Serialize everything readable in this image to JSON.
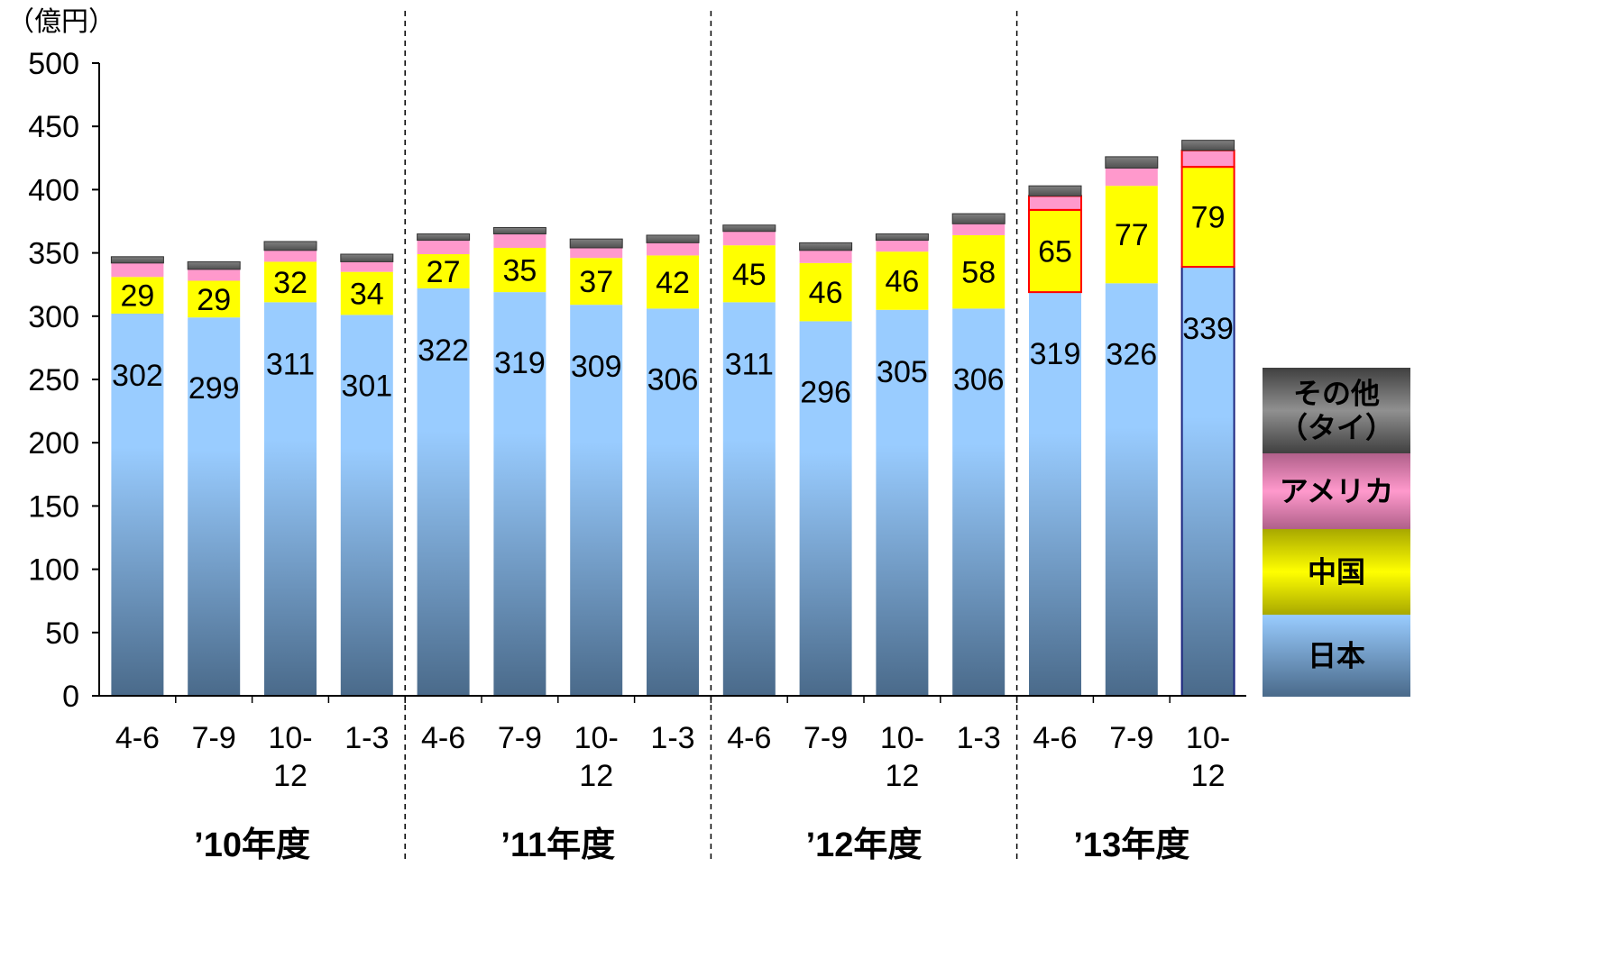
{
  "chart_data": {
    "type": "bar",
    "stacked": true,
    "unit": "（億円）",
    "ylim": [
      0,
      500
    ],
    "yticks": [
      0,
      50,
      100,
      150,
      200,
      250,
      300,
      350,
      400,
      450,
      500
    ],
    "categories": [
      {
        "label": "4-6",
        "group": 0
      },
      {
        "label": "7-9",
        "group": 0
      },
      {
        "label": "10-\n12",
        "group": 0
      },
      {
        "label": "1-3",
        "group": 0
      },
      {
        "label": "4-6",
        "group": 1
      },
      {
        "label": "7-9",
        "group": 1
      },
      {
        "label": "10-\n12",
        "group": 1
      },
      {
        "label": "1-3",
        "group": 1
      },
      {
        "label": "4-6",
        "group": 2
      },
      {
        "label": "7-9",
        "group": 2
      },
      {
        "label": "10-\n12",
        "group": 2
      },
      {
        "label": "1-3",
        "group": 2
      },
      {
        "label": "4-6",
        "group": 3
      },
      {
        "label": "7-9",
        "group": 3
      },
      {
        "label": "10-\n12",
        "group": 3
      }
    ],
    "groups": [
      "’10年度",
      "’11年度",
      "’12年度",
      "’13年度"
    ],
    "series": [
      {
        "name": "日本",
        "key": "japan",
        "values": [
          302,
          299,
          311,
          301,
          322,
          319,
          309,
          306,
          311,
          296,
          305,
          306,
          319,
          326,
          339
        ],
        "labeled": true
      },
      {
        "name": "中国",
        "key": "china",
        "values": [
          29,
          29,
          32,
          34,
          27,
          35,
          37,
          42,
          45,
          46,
          46,
          58,
          65,
          77,
          79
        ],
        "labeled": true
      },
      {
        "name": "アメリカ",
        "key": "usa",
        "values": [
          11,
          9,
          9,
          8,
          11,
          11,
          8,
          10,
          11,
          10,
          9,
          9,
          11,
          14,
          13
        ],
        "labeled": false
      },
      {
        "name": "その他\n（タイ）",
        "key": "other",
        "values": [
          5,
          6,
          7,
          6,
          5,
          5,
          7,
          6,
          5,
          6,
          5,
          8,
          8,
          9,
          8
        ],
        "labeled": false
      }
    ],
    "highlighted_bars": [
      12,
      14
    ],
    "colors": {
      "japan_top": "#99ccff",
      "japan_bottom": "#4a6a8a",
      "china": "#ffff00",
      "china_dark": "#a8a800",
      "usa": "#ff99cc",
      "usa_dark": "#b0608a",
      "other": "#808080",
      "other_dark": "#404040",
      "highlight": "#ff0000"
    }
  }
}
